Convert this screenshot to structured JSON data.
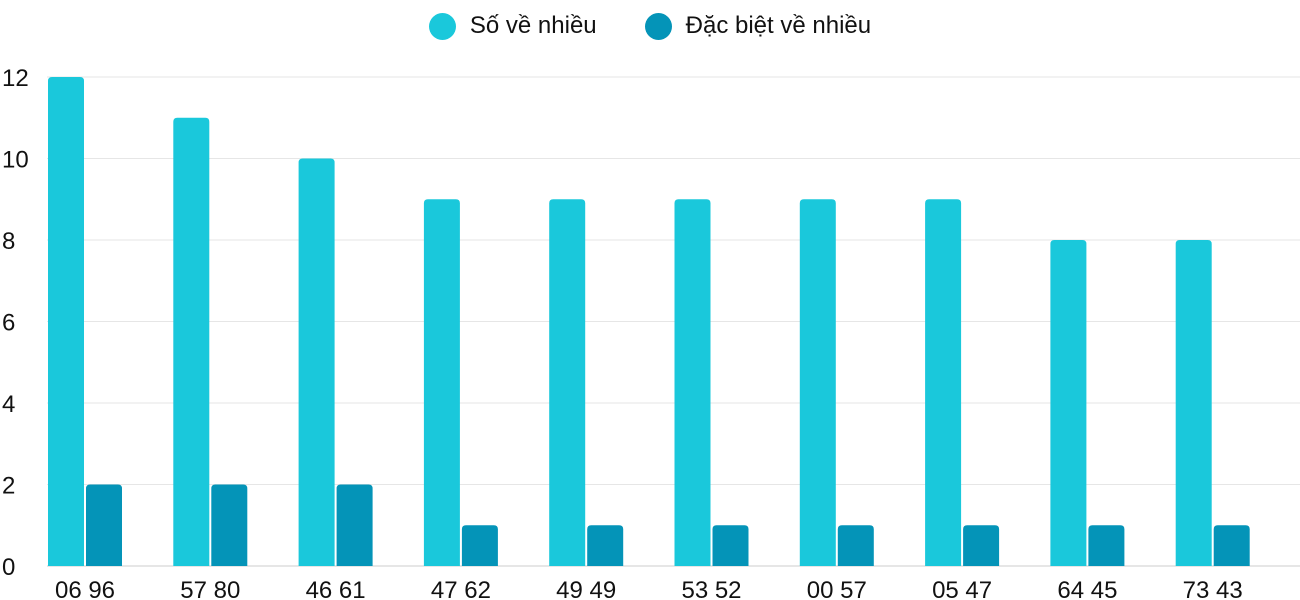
{
  "chart_data": {
    "type": "bar",
    "categories": [
      "06 96",
      "57 80",
      "46 61",
      "47 62",
      "49 49",
      "53 52",
      "00 57",
      "05 47",
      "64 45",
      "73 43"
    ],
    "series": [
      {
        "name": "Số về nhiều",
        "color": "#1AC8DB",
        "values": [
          12,
          11,
          10,
          9,
          9,
          9,
          9,
          9,
          8,
          8
        ]
      },
      {
        "name": "Đặc biệt về nhiều",
        "color": "#0494B8",
        "values": [
          2,
          2,
          2,
          1,
          1,
          1,
          1,
          1,
          1,
          1
        ]
      }
    ],
    "ylim": [
      0,
      12
    ],
    "yticks": [
      0,
      2,
      4,
      6,
      8,
      10,
      12
    ],
    "grid": true,
    "legend": "top-center"
  }
}
